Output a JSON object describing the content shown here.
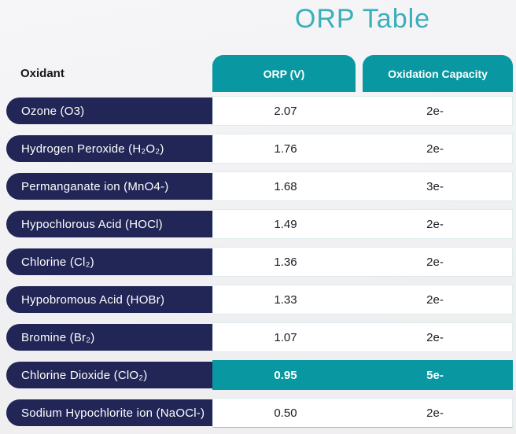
{
  "title": "ORP Table",
  "colors": {
    "teal_accent": "#0997A1",
    "title_teal": "#3AAFB9",
    "navy_label": "#212656",
    "cell_text": "#1B1B26",
    "background": "#F1F1F3",
    "highlight_text": "#FFFFFF"
  },
  "table": {
    "columns": {
      "oxidant": "Oxidant",
      "orp": "ORP (V)",
      "capacity": "Oxidation Capacity"
    },
    "rows": [
      {
        "oxidant": "Ozone (O3)",
        "orp": "2.07",
        "capacity": "2e-",
        "highlighted": false
      },
      {
        "oxidant": "Hydrogen Peroxide (H₂O₂)",
        "orp": "1.76",
        "capacity": "2e-",
        "highlighted": false
      },
      {
        "oxidant": "Permanganate ion (MnO4-)",
        "orp": "1.68",
        "capacity": "3e-",
        "highlighted": false
      },
      {
        "oxidant": "Hypochlorous Acid (HOCl)",
        "orp": "1.49",
        "capacity": "2e-",
        "highlighted": false
      },
      {
        "oxidant": "Chlorine (Cl₂)",
        "orp": "1.36",
        "capacity": "2e-",
        "highlighted": false
      },
      {
        "oxidant": "Hypobromous Acid (HOBr)",
        "orp": "1.33",
        "capacity": "2e-",
        "highlighted": false
      },
      {
        "oxidant": "Bromine (Br₂)",
        "orp": "1.07",
        "capacity": "2e-",
        "highlighted": false
      },
      {
        "oxidant": "Chlorine Dioxide (ClO₂)",
        "orp": "0.95",
        "capacity": "5e-",
        "highlighted": true
      },
      {
        "oxidant": "Sodium Hypochlorite ion (NaOCl-)",
        "orp": "0.50",
        "capacity": "2e-",
        "highlighted": false
      }
    ]
  },
  "chart_data": {
    "type": "table",
    "title": "ORP Table",
    "columns": [
      "Oxidant",
      "ORP (V)",
      "Oxidation Capacity"
    ],
    "rows": [
      [
        "Ozone (O3)",
        2.07,
        "2e-"
      ],
      [
        "Hydrogen Peroxide (H₂O₂)",
        1.76,
        "2e-"
      ],
      [
        "Permanganate ion (MnO4-)",
        1.68,
        "3e-"
      ],
      [
        "Hypochlorous Acid (HOCl)",
        1.49,
        "2e-"
      ],
      [
        "Chlorine (Cl₂)",
        1.36,
        "2e-"
      ],
      [
        "Hypobromous Acid (HOBr)",
        1.33,
        "2e-"
      ],
      [
        "Bromine (Br₂)",
        1.07,
        "2e-"
      ],
      [
        "Chlorine Dioxide (ClO₂)",
        0.95,
        "5e-"
      ],
      [
        "Sodium Hypochlorite ion (NaOCl-)",
        0.5,
        "2e-"
      ]
    ],
    "highlighted_row": "Chlorine Dioxide (ClO₂)"
  }
}
